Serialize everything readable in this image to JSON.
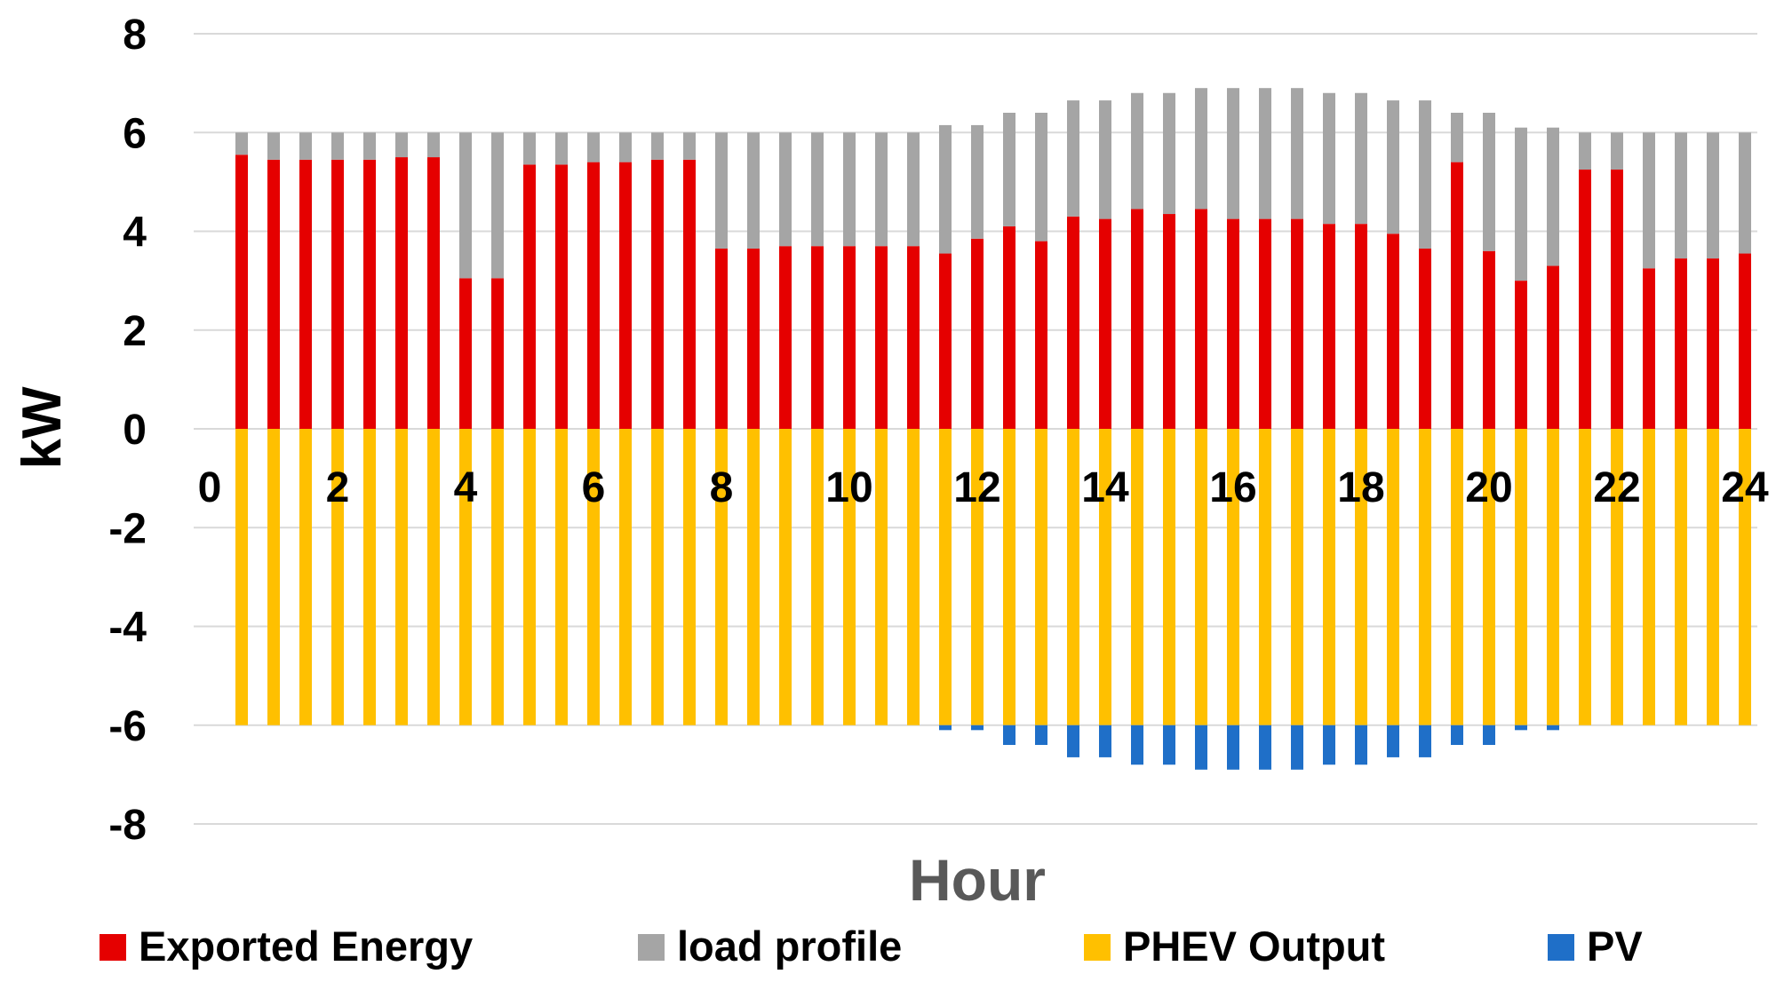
{
  "chart_data": {
    "type": "bar",
    "stacked": true,
    "title": "",
    "xlabel": "Hour",
    "ylabel": "kW",
    "ylim": [
      -8,
      8
    ],
    "xlim": [
      0,
      24
    ],
    "y_ticks": [
      "8",
      "6",
      "4",
      "2",
      "0",
      "-2",
      "-4",
      "-6",
      "-8"
    ],
    "y_tick_values": [
      8,
      6,
      4,
      2,
      0,
      -2,
      -4,
      -6,
      -8
    ],
    "x_ticks": [
      "0",
      "2",
      "4",
      "6",
      "8",
      "10",
      "12",
      "14",
      "16",
      "18",
      "20",
      "22",
      "24"
    ],
    "x_tick_values": [
      0,
      2,
      4,
      6,
      8,
      10,
      12,
      14,
      16,
      18,
      20,
      22,
      24
    ],
    "gridlines": "horizontal",
    "legend_position": "bottom",
    "x": [
      0.5,
      1.0,
      1.5,
      2.0,
      2.5,
      3.0,
      3.5,
      4.0,
      4.5,
      5.0,
      5.5,
      6.0,
      6.5,
      7.0,
      7.5,
      8.0,
      8.5,
      9.0,
      9.5,
      10.0,
      10.5,
      11.0,
      11.5,
      12.0,
      12.5,
      13.0,
      13.5,
      14.0,
      14.5,
      15.0,
      15.5,
      16.0,
      16.5,
      17.0,
      17.5,
      18.0,
      18.5,
      19.0,
      19.5,
      20.0,
      20.5,
      21.0,
      21.5,
      22.0,
      22.5,
      23.0,
      23.5,
      24.0
    ],
    "series": [
      {
        "name": "Exported Energy",
        "color": "#e50000",
        "values": [
          5.55,
          5.45,
          5.45,
          5.45,
          5.45,
          5.5,
          5.5,
          3.05,
          3.05,
          5.35,
          5.35,
          5.4,
          5.4,
          5.45,
          5.45,
          3.65,
          3.65,
          3.7,
          3.7,
          3.7,
          3.7,
          3.7,
          3.55,
          3.85,
          4.1,
          3.8,
          4.3,
          4.25,
          4.45,
          4.35,
          4.45,
          4.25,
          4.25,
          4.25,
          4.15,
          4.15,
          3.95,
          3.65,
          5.4,
          3.6,
          3.0,
          3.3,
          5.25,
          5.25,
          3.25,
          3.45,
          3.45,
          3.55
        ]
      },
      {
        "name": "load profile",
        "color": "#a5a5a5",
        "values": [
          0.45,
          0.55,
          0.55,
          0.55,
          0.55,
          0.5,
          0.5,
          2.95,
          2.95,
          0.65,
          0.65,
          0.6,
          0.6,
          0.55,
          0.55,
          2.35,
          2.35,
          2.3,
          2.3,
          2.3,
          2.3,
          2.3,
          2.6,
          2.3,
          2.3,
          2.6,
          2.35,
          2.4,
          2.35,
          2.45,
          2.45,
          2.65,
          2.65,
          2.65,
          2.65,
          2.65,
          2.7,
          3.0,
          1.0,
          2.8,
          3.1,
          2.8,
          0.75,
          0.75,
          2.75,
          2.55,
          2.55,
          2.45
        ]
      },
      {
        "name": "PHEV Output",
        "color": "#ffc000",
        "values": [
          -6,
          -6,
          -6,
          -6,
          -6,
          -6,
          -6,
          -6,
          -6,
          -6,
          -6,
          -6,
          -6,
          -6,
          -6,
          -6,
          -6,
          -6,
          -6,
          -6,
          -6,
          -6,
          -6,
          -6,
          -6,
          -6,
          -6,
          -6,
          -6,
          -6,
          -6,
          -6,
          -6,
          -6,
          -6,
          -6,
          -6,
          -6,
          -6,
          -6,
          -6,
          -6,
          -6,
          -6,
          -6,
          -6,
          -6,
          -6
        ]
      },
      {
        "name": "PV",
        "color": "#1f6fc8",
        "values": [
          0,
          0,
          0,
          0,
          0,
          0,
          0,
          0,
          0,
          0,
          0,
          0,
          0,
          0,
          0,
          0,
          0,
          0,
          0,
          0,
          0,
          0,
          -0.1,
          -0.1,
          -0.4,
          -0.4,
          -0.65,
          -0.65,
          -0.8,
          -0.8,
          -0.9,
          -0.9,
          -0.9,
          -0.9,
          -0.8,
          -0.8,
          -0.65,
          -0.65,
          -0.4,
          -0.4,
          -0.1,
          -0.1,
          0,
          0,
          0,
          0,
          0,
          0
        ]
      }
    ]
  }
}
